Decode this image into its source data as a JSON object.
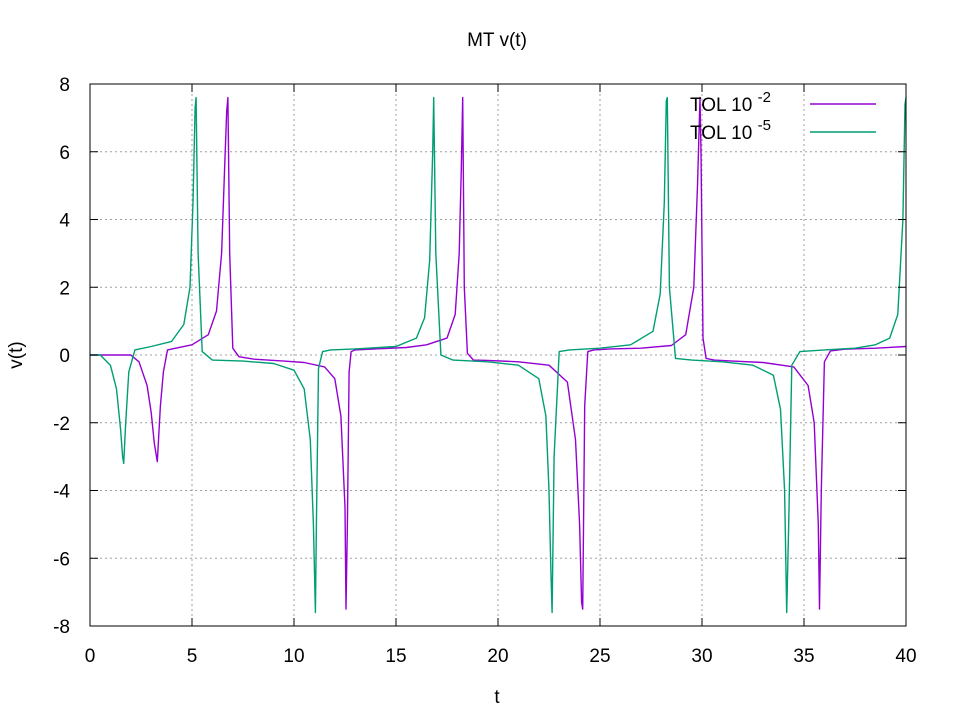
{
  "chart_data": {
    "type": "line",
    "title": "MT v(t)",
    "xlabel": "t",
    "ylabel": "v(t)",
    "xlim": [
      0,
      40
    ],
    "ylim": [
      -8,
      8
    ],
    "xticks": [
      0,
      5,
      10,
      15,
      20,
      25,
      30,
      35,
      40
    ],
    "yticks": [
      -8,
      -6,
      -4,
      -2,
      0,
      2,
      4,
      6,
      8
    ],
    "grid": true,
    "legend_position": "top-right",
    "series": [
      {
        "name_base": "TOL 10",
        "name_exponent": "-2",
        "color": "#9400d3",
        "x": [
          0,
          1.0,
          2.0,
          2.4,
          2.8,
          3.0,
          3.15,
          3.3,
          3.45,
          3.6,
          3.8,
          4.2,
          5.0,
          5.8,
          6.2,
          6.45,
          6.6,
          6.7,
          6.76,
          6.85,
          7.0,
          7.3,
          8.0,
          9.5,
          10.5,
          11.5,
          12.0,
          12.3,
          12.5,
          12.55,
          12.62,
          12.7,
          12.8,
          13.0,
          14.0,
          15.5,
          16.5,
          17.5,
          17.9,
          18.1,
          18.2,
          18.27,
          18.35,
          18.5,
          18.8,
          19.5,
          21.0,
          22.5,
          23.4,
          23.8,
          24.0,
          24.1,
          24.15,
          24.25,
          24.4,
          24.7,
          25.5,
          27.0,
          28.5,
          29.2,
          29.6,
          29.78,
          29.9,
          29.95,
          30.05,
          30.2,
          30.6,
          31.5,
          33.0,
          34.5,
          35.2,
          35.5,
          35.7,
          35.76,
          35.85,
          36.0,
          36.3,
          37.0,
          38.5,
          40.0
        ],
        "y": [
          0,
          0,
          0,
          -0.2,
          -0.9,
          -1.7,
          -2.6,
          -3.15,
          -1.5,
          -0.5,
          0.15,
          0.2,
          0.3,
          0.6,
          1.3,
          3.0,
          5.5,
          7.2,
          7.6,
          3.0,
          0.2,
          -0.05,
          -0.12,
          -0.18,
          -0.22,
          -0.35,
          -0.7,
          -1.8,
          -4.5,
          -7.5,
          -5.0,
          -0.5,
          0.1,
          0.15,
          0.18,
          0.22,
          0.3,
          0.5,
          1.2,
          3.0,
          5.5,
          7.6,
          2.0,
          0.05,
          -0.15,
          -0.16,
          -0.2,
          -0.3,
          -0.8,
          -2.5,
          -5.0,
          -7.3,
          -7.5,
          -1.5,
          0.1,
          0.15,
          0.18,
          0.2,
          0.28,
          0.6,
          2.0,
          5.0,
          7.6,
          6.0,
          0.5,
          -0.1,
          -0.15,
          -0.18,
          -0.22,
          -0.35,
          -0.9,
          -2.0,
          -5.0,
          -7.5,
          -4.0,
          -0.2,
          0.12,
          0.17,
          0.2,
          0.25
        ]
      },
      {
        "name_base": "TOL 10",
        "name_exponent": "-5",
        "color": "#009e73",
        "x": [
          0,
          0.5,
          1.0,
          1.3,
          1.5,
          1.6,
          1.65,
          1.75,
          1.9,
          2.2,
          3.0,
          4.0,
          4.6,
          4.9,
          5.05,
          5.15,
          5.2,
          5.3,
          5.5,
          6.0,
          7.5,
          9.0,
          10.0,
          10.5,
          10.8,
          10.95,
          11.05,
          11.1,
          11.2,
          11.4,
          11.8,
          13.0,
          15.0,
          16.0,
          16.4,
          16.65,
          16.8,
          16.85,
          16.95,
          17.2,
          17.8,
          19.5,
          21.0,
          22.0,
          22.35,
          22.5,
          22.6,
          22.65,
          22.75,
          23.0,
          23.5,
          25.0,
          26.5,
          27.6,
          27.95,
          28.15,
          28.25,
          28.3,
          28.4,
          28.7,
          29.5,
          31.0,
          32.5,
          33.5,
          33.85,
          34.05,
          34.15,
          34.25,
          34.4,
          34.8,
          36.0,
          37.5,
          38.5,
          39.2,
          39.6,
          39.85,
          39.95,
          40.0
        ],
        "y": [
          0,
          0,
          -0.3,
          -1.0,
          -2.2,
          -3.0,
          -3.2,
          -2.0,
          -0.5,
          0.15,
          0.25,
          0.4,
          0.9,
          2.0,
          4.5,
          7.3,
          7.6,
          3.0,
          0.1,
          -0.15,
          -0.18,
          -0.25,
          -0.45,
          -1.0,
          -2.5,
          -5.0,
          -7.6,
          -5.0,
          -0.4,
          0.1,
          0.15,
          0.18,
          0.25,
          0.5,
          1.1,
          2.8,
          6.0,
          7.6,
          3.0,
          0.0,
          -0.15,
          -0.2,
          -0.3,
          -0.7,
          -1.8,
          -4.0,
          -6.5,
          -7.6,
          -3.0,
          0.1,
          0.15,
          0.2,
          0.3,
          0.7,
          1.8,
          4.5,
          7.5,
          7.6,
          2.0,
          -0.1,
          -0.15,
          -0.2,
          -0.3,
          -0.6,
          -1.6,
          -4.0,
          -7.6,
          -5.0,
          -0.3,
          0.1,
          0.15,
          0.2,
          0.3,
          0.5,
          1.2,
          4.0,
          7.4,
          7.6
        ]
      }
    ]
  }
}
